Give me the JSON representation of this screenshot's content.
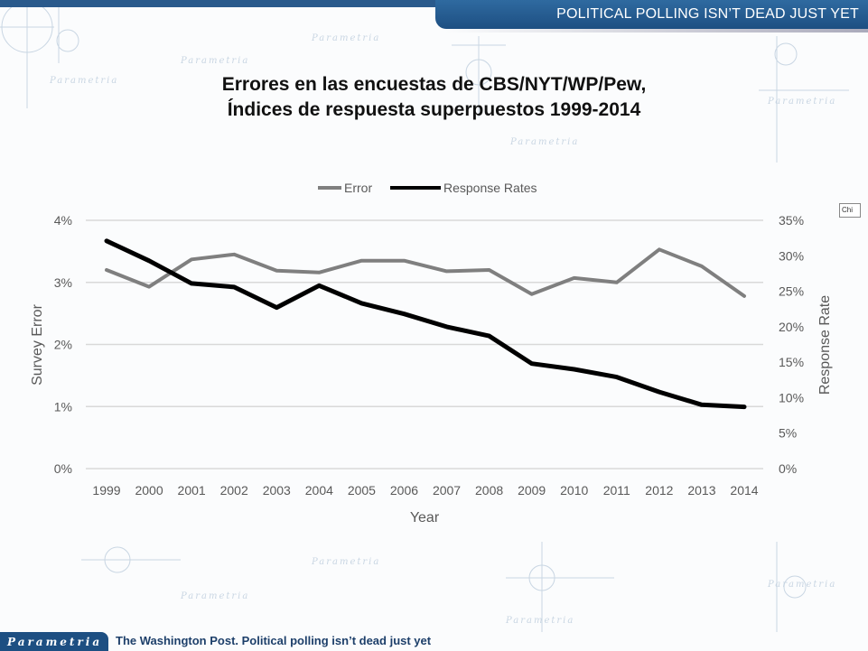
{
  "header": {
    "banner_text": "POLITICAL POLLING ISN’T DEAD JUST YET"
  },
  "watermark": {
    "brand": "Parametria"
  },
  "footer": {
    "logo_text": "Parametria",
    "source_text": "The Washington Post. Political polling isn’t dead just yet"
  },
  "chart_tag": "Chi",
  "colors": {
    "banner": "#1d4f82",
    "error_line": "#7f7f7f",
    "response_line": "#000000",
    "grid": "#d9d9d9"
  },
  "chart_data": {
    "type": "line",
    "title_line1": "Errores en las encuestas de CBS/NYT/WP/Pew,",
    "title_line2": "Índices  de respuesta superpuestos 1999-2014",
    "xlabel": "Year",
    "ylabel": "Survey Error",
    "y2label": "Response Rate",
    "legend_position": "top",
    "grid": true,
    "x": [
      "1999",
      "2000",
      "2001",
      "2002",
      "2003",
      "2004",
      "2005",
      "2006",
      "2007",
      "2008",
      "2009",
      "2010",
      "2011",
      "2012",
      "2013",
      "2014"
    ],
    "ylim": [
      0,
      4
    ],
    "y_ticks": [
      "0%",
      "1%",
      "2%",
      "3%",
      "4%"
    ],
    "y2lim": [
      0,
      35
    ],
    "y2_ticks": [
      "0%",
      "5%",
      "10%",
      "15%",
      "20%",
      "25%",
      "30%",
      "35%"
    ],
    "series": [
      {
        "name": "Error",
        "axis": "left",
        "unit": "%",
        "values": [
          3.2,
          2.93,
          3.37,
          3.45,
          3.19,
          3.16,
          3.35,
          3.35,
          3.18,
          3.2,
          2.81,
          3.07,
          3.0,
          3.53,
          3.26,
          2.78
        ]
      },
      {
        "name": "Response Rates",
        "axis": "right",
        "unit": "%",
        "values": [
          32.1,
          29.3,
          26.1,
          25.6,
          22.7,
          25.8,
          23.3,
          21.8,
          20.0,
          18.7,
          14.8,
          14.0,
          12.9,
          10.8,
          9.0,
          8.7
        ]
      }
    ]
  }
}
